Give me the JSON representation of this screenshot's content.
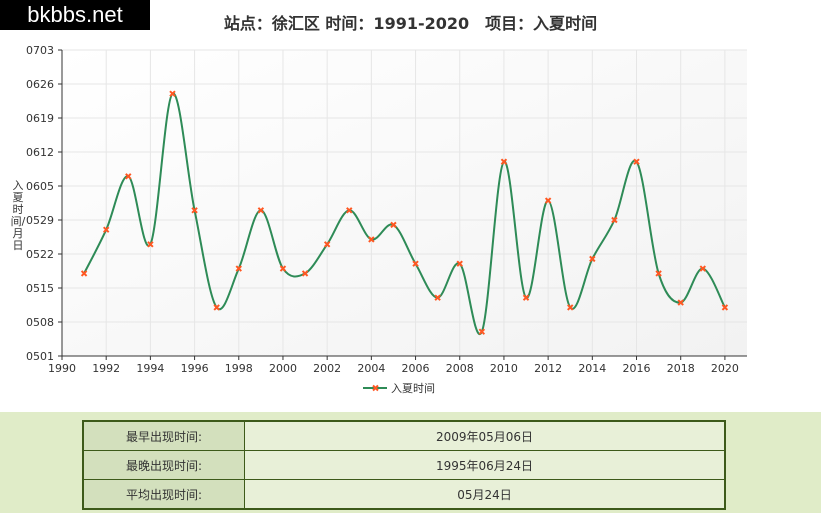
{
  "header": {
    "logo": "bkbbs.net",
    "title": "站点：徐汇区 时间：1991-2020　项目：入夏时间"
  },
  "chart_data": {
    "type": "line",
    "title": "站点：徐汇区 时间：1991-2020　项目：入夏时间",
    "ylabel": "入夏时间/月日",
    "xlabel": "",
    "xlim": [
      1990,
      2021
    ],
    "x_ticks": [
      "1990",
      "1992",
      "1994",
      "1996",
      "1998",
      "2000",
      "2002",
      "2004",
      "2006",
      "2008",
      "2010",
      "2012",
      "2014",
      "2016",
      "2018",
      "2020"
    ],
    "y_ticks": [
      "0501",
      "0508",
      "0515",
      "0522",
      "0529",
      "0605",
      "0612",
      "0619",
      "0626",
      "0703"
    ],
    "legend_position": "bottom",
    "grid": true,
    "series": [
      {
        "name": "入夏时间",
        "color": "#2e8b57",
        "marker_color": "#ff5722",
        "x": [
          1991,
          1992,
          1993,
          1994,
          1995,
          1996,
          1997,
          1998,
          1999,
          2000,
          2001,
          2002,
          2003,
          2004,
          2005,
          2006,
          2007,
          2008,
          2009,
          2010,
          2011,
          2012,
          2013,
          2014,
          2015,
          2016,
          2017,
          2018,
          2019,
          2020
        ],
        "y": [
          "0518",
          "0527",
          "0607",
          "0524",
          "0624",
          "0531",
          "0511",
          "0519",
          "0531",
          "0519",
          "0518",
          "0524",
          "0531",
          "0525",
          "0528",
          "0520",
          "0513",
          "0520",
          "0506",
          "0610",
          "0513",
          "0602",
          "0511",
          "0521",
          "0529",
          "0610",
          "0518",
          "0512",
          "0519",
          "0511"
        ]
      }
    ]
  },
  "stats": [
    {
      "label": "最早出现时间:",
      "value": "2009年05月06日"
    },
    {
      "label": "最晚出现时间:",
      "value": "1995年06月24日"
    },
    {
      "label": "平均出现时间:",
      "value": "05月24日"
    }
  ]
}
